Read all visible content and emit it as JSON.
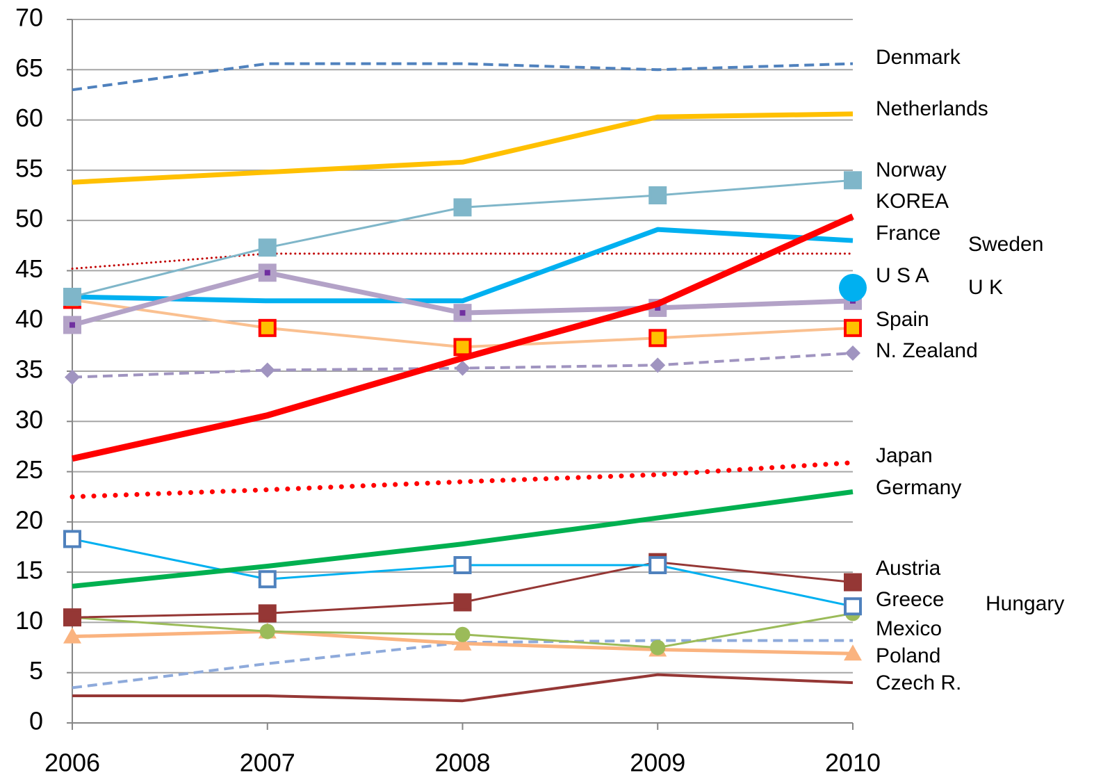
{
  "chart_data": {
    "type": "line",
    "x": [
      2006,
      2007,
      2008,
      2009,
      2010
    ],
    "xlim": [
      2006,
      2010
    ],
    "xticks": [
      2006,
      2007,
      2008,
      2009,
      2010
    ],
    "ylim": [
      0,
      70
    ],
    "yticks": [
      0,
      5,
      10,
      15,
      20,
      25,
      30,
      35,
      40,
      45,
      50,
      55,
      60,
      65,
      70
    ],
    "grid": true,
    "series": [
      {
        "name": "Denmark",
        "color": "#4f81bd",
        "line_width": 4,
        "dash": "dashed",
        "values": [
          63.0,
          65.6,
          65.6,
          65.0,
          65.6
        ]
      },
      {
        "name": "Netherlands",
        "color": "#ffc000",
        "line_width": 7,
        "dash": "solid",
        "values": [
          53.8,
          54.8,
          55.8,
          60.3,
          60.6
        ]
      },
      {
        "name": "Hungary",
        "color": "#8eaadb",
        "line_width": 4,
        "dash": "dashed",
        "values": [
          3.5,
          5.9,
          8.0,
          8.2,
          8.2
        ]
      },
      {
        "name": "Czech R.",
        "color": "#953735",
        "line_width": 4,
        "dash": "solid",
        "values": [
          2.7,
          2.7,
          2.2,
          4.8,
          4.0
        ]
      },
      {
        "name": "Poland",
        "color": "#fab37f",
        "line_width": 5,
        "dash": "solid",
        "marker": "triangle",
        "marker_color": "#fab37f",
        "values": [
          8.6,
          9.1,
          7.9,
          7.3,
          6.9
        ]
      },
      {
        "name": "Mexico",
        "color": "#9bbb59",
        "line_width": 3,
        "dash": "solid",
        "marker": "circle",
        "marker_color": "#9bbb59",
        "values": [
          10.5,
          9.1,
          8.8,
          7.5,
          10.9
        ]
      },
      {
        "name": "Austria",
        "color": "#953735",
        "line_width": 3,
        "dash": "solid",
        "marker": "square",
        "marker_color": "#953735",
        "values": [
          10.5,
          10.9,
          12.0,
          16.0,
          14.0
        ]
      },
      {
        "name": "Greece",
        "color": "#00b0f0",
        "line_width": 3,
        "dash": "solid",
        "marker": "square",
        "marker_color": "#ffffff",
        "marker_edge": "#4f81bd",
        "values": [
          18.3,
          14.3,
          15.7,
          15.7,
          11.6
        ]
      },
      {
        "name": "Germany",
        "color": "#00b050",
        "line_width": 7,
        "dash": "solid",
        "values": [
          13.6,
          15.6,
          17.8,
          20.4,
          23.0
        ]
      },
      {
        "name": "Japan",
        "color": "#ff0000",
        "line_width": 7,
        "dash": "dotted",
        "values": [
          22.5,
          23.2,
          24.0,
          24.7,
          25.9
        ]
      },
      {
        "name": "N. Zealand",
        "color": "#a094c0",
        "line_width": 4,
        "dash": "dashed",
        "marker": "diamond",
        "marker_color": "#a094c0",
        "values": [
          34.4,
          35.1,
          35.3,
          35.6,
          36.8
        ]
      },
      {
        "name": "Spain",
        "color": "#fac090",
        "line_width": 4,
        "dash": "solid",
        "marker": "square",
        "marker_color": "#ffc000",
        "marker_edge": "#ff0000",
        "values": [
          42.1,
          39.3,
          37.4,
          38.3,
          39.3
        ]
      },
      {
        "name": "Sweden",
        "color": "#c00000",
        "line_width": 3,
        "dash": "dotted",
        "values": [
          45.2,
          46.7,
          46.7,
          46.7,
          46.7
        ]
      },
      {
        "name": "France",
        "color": "#00b0f0",
        "line_width": 7,
        "dash": "solid",
        "values": [
          42.4,
          42.0,
          42.0,
          49.1,
          48.0
        ]
      },
      {
        "name": "U K",
        "color": "#b3a2c7",
        "line_width": 7,
        "dash": "solid",
        "marker": "square",
        "marker_color": "#b3a2c7",
        "marker_edge": "#b3a2c7",
        "marker_center": "#7030a0",
        "values": [
          39.6,
          44.8,
          40.8,
          41.3,
          42.0
        ]
      },
      {
        "name": "Norway",
        "color": "#7fb6c9",
        "line_width": 3,
        "dash": "solid",
        "marker": "square",
        "marker_color": "#7fb6c9",
        "values": [
          42.4,
          47.3,
          51.3,
          52.5,
          54.0
        ]
      },
      {
        "name": "KOREA",
        "color": "#ff0000",
        "line_width": 9,
        "dash": "solid",
        "values": [
          26.3,
          30.6,
          36.3,
          41.7,
          50.4
        ]
      },
      {
        "name": "U S A",
        "color": "#00b0f0",
        "marker": "big-circle",
        "marker_color": "#00b0f0",
        "values": [
          null,
          null,
          null,
          null,
          43.3
        ]
      }
    ]
  }
}
